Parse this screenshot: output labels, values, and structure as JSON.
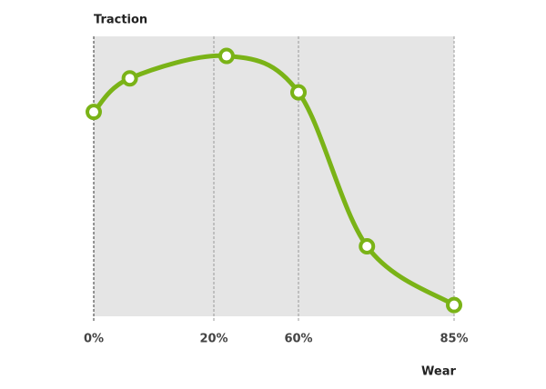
{
  "chart_data": {
    "type": "line",
    "y_label": "Traction",
    "x_label": "Wear",
    "x": [
      0,
      6,
      26,
      60,
      71,
      85
    ],
    "series": [
      {
        "name": "Traction",
        "color": "#7ab317",
        "values": [
          73,
          85,
          93,
          80,
          25,
          4
        ]
      }
    ],
    "xlim": [
      0,
      85
    ],
    "xticks": [
      {
        "value": 0,
        "label": "0%"
      },
      {
        "value": 20,
        "label": "20%"
      },
      {
        "value": 60,
        "label": "60%"
      },
      {
        "value": 85,
        "label": "85%"
      }
    ],
    "ylim": [
      0,
      100
    ],
    "grid": true
  }
}
